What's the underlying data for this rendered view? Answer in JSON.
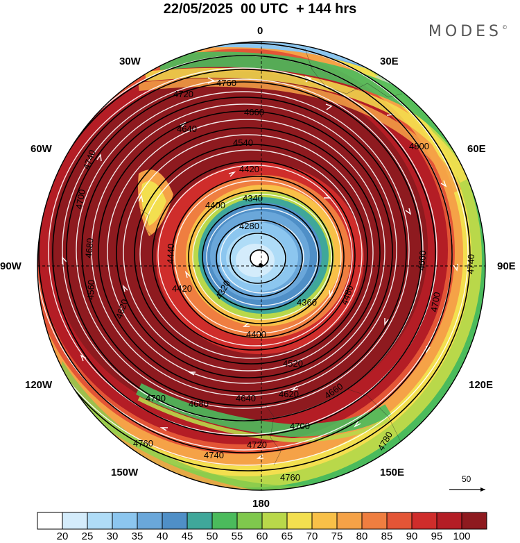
{
  "title": "22/05/2025  00 UTC  + 144 hrs",
  "brand": "MODES",
  "brand_mark": "©",
  "longitude_labels": {
    "top": "0",
    "top_left": "30W",
    "top_right": "30E",
    "upper_left": "60W",
    "upper_right": "60E",
    "left": "90W",
    "right": "90E",
    "lower_left": "120W",
    "lower_right": "120E",
    "bottom_left": "150W",
    "bottom_right": "150E",
    "bottom": "180"
  },
  "contour_labels": [
    "4760",
    "4720",
    "4660",
    "4640",
    "4540",
    "4420",
    "4340",
    "4280",
    "4800",
    "4740",
    "4700",
    "4680",
    "4560",
    "4620",
    "4440",
    "4420",
    "4400",
    "4320",
    "4360",
    "4400",
    "4420",
    "4480",
    "4660",
    "4700",
    "4740",
    "4520",
    "4620",
    "4640",
    "4660",
    "4700",
    "4680",
    "4700",
    "4720",
    "4740",
    "4760",
    "4760",
    "4780"
  ],
  "scale_vector": {
    "label": "50"
  },
  "colorbar": {
    "labels": [
      "20",
      "25",
      "30",
      "35",
      "40",
      "45",
      "50",
      "55",
      "60",
      "65",
      "70",
      "75",
      "80",
      "85",
      "90",
      "95",
      "100"
    ],
    "colors": [
      "#ffffff",
      "#d4ecfb",
      "#afdcf7",
      "#8cc6ef",
      "#6aa7da",
      "#4f8fc7",
      "#3fa79a",
      "#4bbb5c",
      "#7fc84d",
      "#b9d84a",
      "#f3df4f",
      "#f8c048",
      "#f5a247",
      "#ef7e40",
      "#e35536",
      "#cf2d2b",
      "#b41d25",
      "#8e1a1f"
    ]
  },
  "wind_speed_palette": [
    "#ffffff",
    "#d4ecfb",
    "#afdcf7",
    "#8cc6ef",
    "#6aa7da",
    "#4f8fc7",
    "#3fa79a",
    "#4bbb5c",
    "#7fc84d",
    "#b9d84a",
    "#f3df4f",
    "#f8c048",
    "#f5a247",
    "#ef7e40",
    "#e35536",
    "#cf2d2b",
    "#b41d25",
    "#8e1a1f"
  ]
}
